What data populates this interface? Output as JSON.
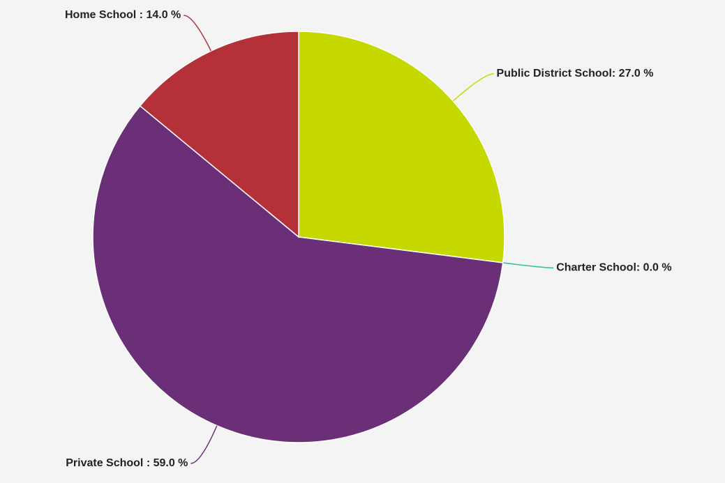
{
  "chart_data": {
    "type": "pie",
    "values": [
      27.0,
      0.0,
      59.0,
      14.0
    ],
    "value_labels": [
      "Public District School: 27.0 %",
      "Charter School: 0.0 %",
      "Private School : 59.0 %",
      "Home School : 14.0 %"
    ],
    "colors": [
      "#c5d800",
      "#2bbf9a",
      "#6b2f78",
      "#b5313a"
    ]
  }
}
